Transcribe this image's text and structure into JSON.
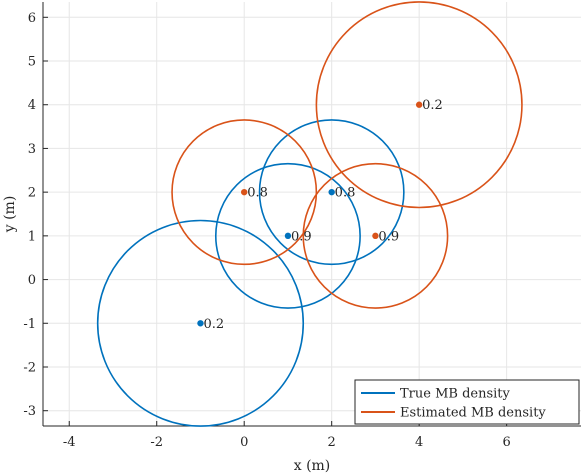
{
  "chart_data": {
    "type": "scatter",
    "xlabel": "x (m)",
    "ylabel": "y (m)",
    "xlim": [
      -4.6,
      7.7
    ],
    "ylim": [
      -3.35,
      6.35
    ],
    "xticks": [
      -4,
      -2,
      0,
      2,
      4,
      6
    ],
    "yticks": [
      -3,
      -2,
      -1,
      0,
      1,
      2,
      3,
      4,
      5,
      6
    ],
    "grid": true,
    "legend_position": "bottom-right",
    "series": [
      {
        "name": "True MB density",
        "color": "#0072BD",
        "components": [
          {
            "x": -1,
            "y": -1,
            "r": 2.35,
            "label": "0.2"
          },
          {
            "x": 1,
            "y": 1,
            "r": 1.65,
            "label": "0.9"
          },
          {
            "x": 2,
            "y": 2,
            "r": 1.65,
            "label": "0.8"
          }
        ]
      },
      {
        "name": "Estimated MB density",
        "color": "#D95319",
        "components": [
          {
            "x": 0,
            "y": 2,
            "r": 1.65,
            "label": "0.8"
          },
          {
            "x": 3,
            "y": 1,
            "r": 1.65,
            "label": "0.9"
          },
          {
            "x": 4,
            "y": 4,
            "r": 2.35,
            "label": "0.2"
          }
        ]
      }
    ]
  }
}
